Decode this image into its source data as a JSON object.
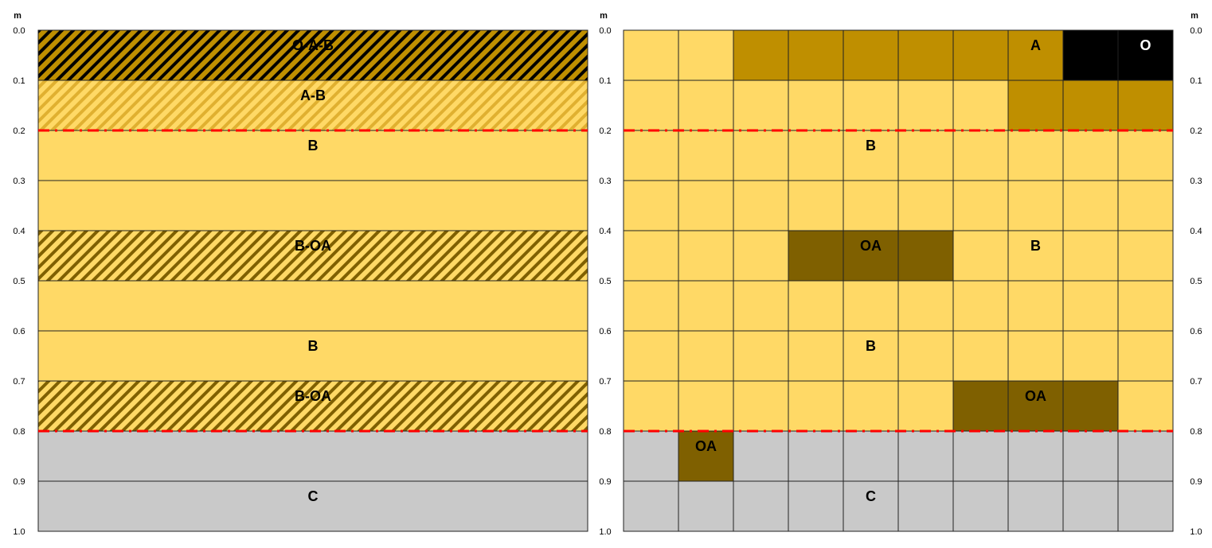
{
  "axis_unit": "m",
  "depth_ticks": [
    {
      "value": 0,
      "label": "0.0"
    },
    {
      "value": 0.1,
      "label": "0.1"
    },
    {
      "value": 0.2,
      "label": "0.2"
    },
    {
      "value": 0.3,
      "label": "0.3"
    },
    {
      "value": 0.4,
      "label": "0.4"
    },
    {
      "value": 0.5,
      "label": "0.5"
    },
    {
      "value": 0.6,
      "label": "0.6"
    },
    {
      "value": 0.7,
      "label": "0.7"
    },
    {
      "value": 0.8,
      "label": "0.8"
    },
    {
      "value": 0.9,
      "label": "0.9"
    },
    {
      "value": 1,
      "label": "1.0"
    }
  ],
  "boundaries": [
    0.2,
    0.8
  ],
  "boundary_color": "#ff0000",
  "profile": [
    {
      "label": "O-A-B",
      "fill": "#bf8f00",
      "hatch": "#000000"
    },
    {
      "label": "A-B",
      "fill": "#ffd966",
      "hatch": "#e0b030"
    },
    {
      "label": "B",
      "fill": "#ffd966",
      "hatch": null
    },
    {
      "label": null,
      "fill": "#ffd966",
      "hatch": null
    },
    {
      "label": "B-OA",
      "fill": "#ffd966",
      "hatch": "#7f6000"
    },
    {
      "label": null,
      "fill": "#ffd966",
      "hatch": null
    },
    {
      "label": "B",
      "fill": "#ffd966",
      "hatch": null
    },
    {
      "label": "B-OA",
      "fill": "#ffd966",
      "hatch": "#7f6000"
    },
    {
      "label": null,
      "fill": "#c9c9c9",
      "hatch": null
    },
    {
      "label": "C",
      "fill": "#c9c9c9",
      "hatch": null
    }
  ],
  "grid": [
    {
      "colors": [
        "#ffd966",
        "#ffd966",
        "#bf8f00",
        "#bf8f00",
        "#bf8f00",
        "#bf8f00",
        "#bf8f00",
        "#bf8f00",
        "#000000",
        "#000000"
      ],
      "labels": [
        null,
        null,
        null,
        null,
        null,
        null,
        null,
        "A",
        null,
        "O"
      ]
    },
    {
      "colors": [
        "#ffd966",
        "#ffd966",
        "#ffd966",
        "#ffd966",
        "#ffd966",
        "#ffd966",
        "#ffd966",
        "#bf8f00",
        "#bf8f00",
        "#bf8f00"
      ],
      "labels": [
        null,
        null,
        null,
        null,
        null,
        null,
        null,
        null,
        null,
        null
      ]
    },
    {
      "colors": [
        "#ffd966",
        "#ffd966",
        "#ffd966",
        "#ffd966",
        "#ffd966",
        "#ffd966",
        "#ffd966",
        "#ffd966",
        "#ffd966",
        "#ffd966"
      ],
      "labels": [
        null,
        null,
        null,
        null,
        "B",
        null,
        null,
        null,
        null,
        null
      ]
    },
    {
      "colors": [
        "#ffd966",
        "#ffd966",
        "#ffd966",
        "#ffd966",
        "#ffd966",
        "#ffd966",
        "#ffd966",
        "#ffd966",
        "#ffd966",
        "#ffd966"
      ],
      "labels": [
        null,
        null,
        null,
        null,
        null,
        null,
        null,
        null,
        null,
        null
      ]
    },
    {
      "colors": [
        "#ffd966",
        "#ffd966",
        "#ffd966",
        "#7f6000",
        "#7f6000",
        "#7f6000",
        "#ffd966",
        "#ffd966",
        "#ffd966",
        "#ffd966"
      ],
      "labels": [
        null,
        null,
        null,
        null,
        "OA",
        null,
        null,
        "B",
        null,
        null
      ]
    },
    {
      "colors": [
        "#ffd966",
        "#ffd966",
        "#ffd966",
        "#ffd966",
        "#ffd966",
        "#ffd966",
        "#ffd966",
        "#ffd966",
        "#ffd966",
        "#ffd966"
      ],
      "labels": [
        null,
        null,
        null,
        null,
        null,
        null,
        null,
        null,
        null,
        null
      ]
    },
    {
      "colors": [
        "#ffd966",
        "#ffd966",
        "#ffd966",
        "#ffd966",
        "#ffd966",
        "#ffd966",
        "#ffd966",
        "#ffd966",
        "#ffd966",
        "#ffd966"
      ],
      "labels": [
        null,
        null,
        null,
        null,
        "B",
        null,
        null,
        null,
        null,
        null
      ]
    },
    {
      "colors": [
        "#ffd966",
        "#ffd966",
        "#ffd966",
        "#ffd966",
        "#ffd966",
        "#ffd966",
        "#7f6000",
        "#7f6000",
        "#7f6000",
        "#ffd966"
      ],
      "labels": [
        null,
        null,
        null,
        null,
        null,
        null,
        null,
        "OA",
        null,
        null
      ]
    },
    {
      "colors": [
        "#c9c9c9",
        "#7f6000",
        "#c9c9c9",
        "#c9c9c9",
        "#c9c9c9",
        "#c9c9c9",
        "#c9c9c9",
        "#c9c9c9",
        "#c9c9c9",
        "#c9c9c9"
      ],
      "labels": [
        null,
        "OA",
        null,
        null,
        null,
        null,
        null,
        null,
        null,
        null
      ]
    },
    {
      "colors": [
        "#c9c9c9",
        "#c9c9c9",
        "#c9c9c9",
        "#c9c9c9",
        "#c9c9c9",
        "#c9c9c9",
        "#c9c9c9",
        "#c9c9c9",
        "#c9c9c9",
        "#c9c9c9"
      ],
      "labels": [
        null,
        null,
        null,
        null,
        "C",
        null,
        null,
        null,
        null,
        null
      ]
    }
  ]
}
